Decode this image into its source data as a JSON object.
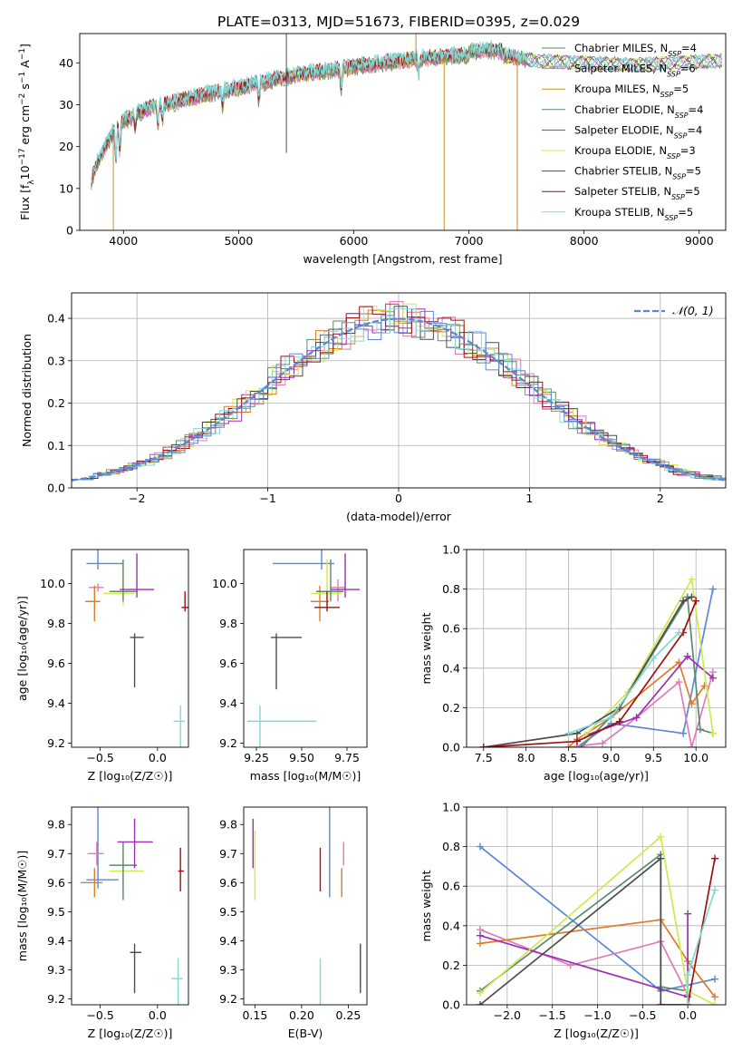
{
  "title": "PLATE=0313, MJD=51673, FIBERID=0395, z=0.029",
  "colors": {
    "c1": "#5b8a6b",
    "c2": "#e07ab8",
    "c3": "#e07b28",
    "c4": "#5b8a6b",
    "c5": "#9b2fb5",
    "c6": "#cfea4c",
    "c7": "#4d4d4d",
    "c8": "#a01010",
    "c9": "#7fd9d9",
    "blue": "#5b88d6"
  },
  "chart_data": [
    {
      "id": "spectrum",
      "type": "line",
      "xlabel": "wavelength [Angstrom, rest frame]",
      "ylabel": "Flux [f$_\\lambda$10$^{-17}$ erg cm$^{-2}$ s$^{-1}$ A$^{-1}$]",
      "ylabel_parts": [
        "Flux [f",
        "λ",
        "10",
        "−17",
        " erg cm",
        "−2",
        " s",
        "−1",
        " A",
        "−1",
        "]"
      ],
      "xlim": [
        3620,
        9230
      ],
      "ylim": [
        0,
        47
      ],
      "xticks": [
        4000,
        5000,
        6000,
        7000,
        8000,
        9000
      ],
      "yticks": [
        0,
        10,
        20,
        30,
        40
      ],
      "legend_position": "upper-right",
      "continuum": [
        [
          3720,
          12
        ],
        [
          3800,
          18
        ],
        [
          3900,
          23
        ],
        [
          4000,
          26
        ],
        [
          4200,
          29
        ],
        [
          4500,
          31
        ],
        [
          4800,
          33
        ],
        [
          5000,
          34
        ],
        [
          5300,
          36
        ],
        [
          5600,
          37.5
        ],
        [
          6000,
          39
        ],
        [
          6400,
          40.5
        ],
        [
          6800,
          41.5
        ],
        [
          7200,
          42
        ],
        [
          7600,
          40.5
        ],
        [
          8000,
          40
        ],
        [
          8400,
          39.5
        ],
        [
          8800,
          40
        ],
        [
          9200,
          40.5
        ]
      ],
      "series": [
        {
          "name": "Chabrier MILES, N",
          "sub": "SSP",
          "suffix": "=4",
          "color": "#5b8a6b"
        },
        {
          "name": "Salpeter MILES, N",
          "sub": "SSP",
          "suffix": "=6",
          "color": "#e07ab8"
        },
        {
          "name": "Kroupa MILES, N",
          "sub": "SSP",
          "suffix": "=5",
          "color": "#c4951f"
        },
        {
          "name": "Chabrier ELODIE, N",
          "sub": "SSP",
          "suffix": "=4",
          "color": "#5b8a6b"
        },
        {
          "name": "Salpeter ELODIE, N",
          "sub": "SSP",
          "suffix": "=4",
          "color": "#9b2fb5"
        },
        {
          "name": "Kroupa ELODIE, N",
          "sub": "SSP",
          "suffix": "=3",
          "color": "#cfea4c"
        },
        {
          "name": "Chabrier STELIB, N",
          "sub": "SSP",
          "suffix": "=5",
          "color": "#4d4d4d"
        },
        {
          "name": "Salpeter STELIB, N",
          "sub": "SSP",
          "suffix": "=5",
          "color": "#a01010"
        },
        {
          "name": "Kroupa STELIB, N",
          "sub": "SSP",
          "suffix": "=5",
          "color": "#7fd9d9"
        }
      ]
    },
    {
      "id": "residuals",
      "type": "bar",
      "xlabel": "(data-model)/error",
      "ylabel": "Normed distribution",
      "xlim": [
        -2.5,
        2.5
      ],
      "ylim": [
        0,
        0.46
      ],
      "xticks": [
        -2,
        -1,
        0,
        1,
        2
      ],
      "yticks": [
        0.0,
        0.1,
        0.2,
        0.3,
        0.4
      ],
      "grid": true,
      "legend_position": "upper-right",
      "legend_label": "𝒩(0, 1)",
      "bin_width": 0.1,
      "hist_colors": [
        "#5b8a6b",
        "#e07ab8",
        "#e07b28",
        "#9b2fb5",
        "#cfea4c",
        "#4d4d4d",
        "#a01010",
        "#7fd9d9",
        "#5b88d6"
      ]
    },
    {
      "id": "age-vs-Z",
      "type": "scatter",
      "xlabel": "Z [log₁₀(Z/Z☉)]",
      "ylabel": "age  [log₁₀(age/yr)]",
      "xlim": [
        -0.75,
        0.27
      ],
      "ylim": [
        9.18,
        10.17
      ],
      "xticks": [
        -0.5,
        0.0
      ],
      "yticks": [
        9.2,
        9.4,
        9.6,
        9.8,
        10.0
      ],
      "points": [
        {
          "x": -0.52,
          "y": 10.1,
          "xerr": [
            0.1,
            0.22
          ],
          "yerr": [
            0.57,
            0.03
          ],
          "color": "#5b88d6"
        },
        {
          "x": -0.52,
          "y": 9.98,
          "xerr": [
            0.08,
            0.05
          ],
          "yerr": [
            0.02,
            0.02
          ],
          "color": "#e07ab8"
        },
        {
          "x": -0.55,
          "y": 9.91,
          "xerr": [
            0.08,
            0.05
          ],
          "yerr": [
            0.08,
            0.1
          ],
          "color": "#e07b28"
        },
        {
          "x": -0.3,
          "y": 9.95,
          "xerr": [
            0.17,
            0.1
          ],
          "yerr": [
            0.17,
            0.06
          ],
          "color": "#cfea4c"
        },
        {
          "x": -0.3,
          "y": 9.96,
          "xerr": [
            0.12,
            0.12
          ],
          "yerr": [
            0.16,
            0.05
          ],
          "color": "#5b8a6b"
        },
        {
          "x": -0.18,
          "y": 9.97,
          "xerr": [
            0.15,
            0.15
          ],
          "yerr": [
            0.18,
            0.04
          ],
          "color": "#9b2fb5"
        },
        {
          "x": -0.2,
          "y": 9.73,
          "xerr": [
            0.04,
            0.08
          ],
          "yerr": [
            0.02,
            0.25
          ],
          "color": "#4d4d4d"
        },
        {
          "x": 0.24,
          "y": 9.88,
          "xerr": [
            0.03,
            0.03
          ],
          "yerr": [
            0.08,
            0.02
          ],
          "color": "#a01010"
        },
        {
          "x": 0.2,
          "y": 9.31,
          "xerr": [
            0.06,
            0.04
          ],
          "yerr": [
            0.08,
            0.66
          ],
          "color": "#7fd9d9"
        }
      ]
    },
    {
      "id": "age-vs-mass",
      "type": "scatter",
      "xlabel": "mass [log₁₀(M/M☉)]",
      "ylabel": "",
      "xlim": [
        9.18,
        9.86
      ],
      "ylim": [
        9.18,
        10.17
      ],
      "xticks": [
        9.25,
        9.5,
        9.75
      ],
      "yticks": [
        9.2,
        9.4,
        9.6,
        9.8,
        10.0
      ],
      "points": [
        {
          "x": 9.61,
          "y": 10.1,
          "xerr": [
            0.27,
            0.07
          ],
          "yerr": [
            0.57,
            0.03
          ],
          "color": "#5b88d6"
        },
        {
          "x": 9.7,
          "y": 9.98,
          "xerr": [
            0.04,
            0.04
          ],
          "yerr": [
            0.04,
            0.07
          ],
          "color": "#e07ab8"
        },
        {
          "x": 9.6,
          "y": 9.91,
          "xerr": [
            0.05,
            0.05
          ],
          "yerr": [
            0.08,
            0.1
          ],
          "color": "#e07b28"
        },
        {
          "x": 9.64,
          "y": 9.95,
          "xerr": [
            0.09,
            0.08
          ],
          "yerr": [
            0.17,
            0.06
          ],
          "color": "#cfea4c"
        },
        {
          "x": 9.66,
          "y": 9.96,
          "xerr": [
            0.08,
            0.07
          ],
          "yerr": [
            0.16,
            0.05
          ],
          "color": "#5b8a6b"
        },
        {
          "x": 9.74,
          "y": 9.97,
          "xerr": [
            0.08,
            0.08
          ],
          "yerr": [
            0.18,
            0.04
          ],
          "color": "#9b2fb5"
        },
        {
          "x": 9.36,
          "y": 9.73,
          "xerr": [
            0.03,
            0.14
          ],
          "yerr": [
            0.02,
            0.26
          ],
          "color": "#4d4d4d"
        },
        {
          "x": 9.64,
          "y": 9.88,
          "xerr": [
            0.07,
            0.07
          ],
          "yerr": [
            0.08,
            0.02
          ],
          "color": "#a01010"
        },
        {
          "x": 9.27,
          "y": 9.31,
          "xerr": [
            0.07,
            0.31
          ],
          "yerr": [
            0.08,
            0.66
          ],
          "color": "#7fd9d9"
        }
      ]
    },
    {
      "id": "weight-vs-age",
      "type": "line",
      "xlabel": "age  [log₁₀(age/yr)]",
      "ylabel": "mass weight",
      "xlim": [
        7.3,
        10.35
      ],
      "ylim": [
        0,
        1.0
      ],
      "xticks": [
        7.5,
        8.0,
        8.5,
        9.0,
        9.5,
        10.0
      ],
      "yticks": [
        0.0,
        0.2,
        0.4,
        0.6,
        0.8,
        1.0
      ],
      "grid": true,
      "series": [
        {
          "color": "#5b88d6",
          "x": [
            8.6,
            9.0,
            9.85,
            10.2
          ],
          "y": [
            0.0,
            0.12,
            0.07,
            0.8
          ]
        },
        {
          "color": "#e07ab8",
          "x": [
            8.5,
            8.9,
            9.3,
            9.8,
            9.95,
            10.2
          ],
          "y": [
            0.0,
            0.02,
            0.15,
            0.33,
            0.0,
            0.38
          ]
        },
        {
          "color": "#e07b28",
          "x": [
            8.5,
            8.6,
            9.0,
            9.8,
            9.95,
            10.1
          ],
          "y": [
            0.0,
            0.04,
            0.15,
            0.43,
            0.22,
            0.31
          ]
        },
        {
          "color": "#5b8a6b",
          "x": [
            8.65,
            9.1,
            9.9,
            10.05,
            10.2
          ],
          "y": [
            0.0,
            0.2,
            0.76,
            0.09,
            0.07
          ]
        },
        {
          "color": "#9b2fb5",
          "x": [
            8.7,
            9.3,
            9.9,
            10.2
          ],
          "y": [
            0.06,
            0.15,
            0.46,
            0.35
          ]
        },
        {
          "color": "#cfea4c",
          "x": [
            8.7,
            9.2,
            9.95,
            10.2
          ],
          "y": [
            0.06,
            0.28,
            0.85,
            0.07
          ]
        },
        {
          "color": "#4d4d4d",
          "x": [
            7.5,
            8.6,
            9.1,
            9.85,
            9.95
          ],
          "y": [
            0.0,
            0.07,
            0.2,
            0.74,
            0.76
          ]
        },
        {
          "color": "#a01010",
          "x": [
            7.5,
            8.6,
            9.1,
            9.85,
            10.0
          ],
          "y": [
            0.0,
            0.03,
            0.13,
            0.58,
            0.74
          ]
        },
        {
          "color": "#7fd9d9",
          "x": [
            8.5,
            9.0,
            9.5,
            9.8
          ],
          "y": [
            0.07,
            0.15,
            0.45,
            0.58
          ]
        }
      ]
    },
    {
      "id": "mass-vs-Z",
      "type": "scatter",
      "xlabel": "Z [log₁₀(Z/Z☉)]",
      "ylabel": "mass [log₁₀(M/M☉)]",
      "xlim": [
        -0.75,
        0.27
      ],
      "ylim": [
        9.18,
        9.86
      ],
      "xticks": [
        -0.5,
        0.0
      ],
      "yticks": [
        9.2,
        9.3,
        9.4,
        9.5,
        9.6,
        9.7,
        9.8
      ],
      "points": [
        {
          "x": -0.52,
          "y": 9.61,
          "xerr": [
            0.1,
            0.18
          ],
          "yerr": [
            0.29,
            0.03
          ],
          "color": "#5b88d6"
        },
        {
          "x": -0.53,
          "y": 9.7,
          "xerr": [
            0.08,
            0.06
          ],
          "yerr": [
            0.04,
            0.04
          ],
          "color": "#e07ab8"
        },
        {
          "x": -0.55,
          "y": 9.6,
          "xerr": [
            0.12,
            0.07
          ],
          "yerr": [
            0.05,
            0.05
          ],
          "color": "#e07b28"
        },
        {
          "x": -0.3,
          "y": 9.64,
          "xerr": [
            0.12,
            0.18
          ],
          "yerr": [
            0.09,
            0.08
          ],
          "color": "#cfea4c"
        },
        {
          "x": -0.3,
          "y": 9.66,
          "xerr": [
            0.12,
            0.12
          ],
          "yerr": [
            0.08,
            0.12
          ],
          "color": "#5b8a6b"
        },
        {
          "x": -0.2,
          "y": 9.74,
          "xerr": [
            0.15,
            0.16
          ],
          "yerr": [
            0.08,
            0.09
          ],
          "color": "#9b2fb5"
        },
        {
          "x": -0.2,
          "y": 9.36,
          "xerr": [
            0.04,
            0.06
          ],
          "yerr": [
            0.03,
            0.14
          ],
          "color": "#4d4d4d"
        },
        {
          "x": 0.2,
          "y": 9.64,
          "xerr": [
            0.02,
            0.03
          ],
          "yerr": [
            0.08,
            0.07
          ],
          "color": "#a01010"
        },
        {
          "x": 0.18,
          "y": 9.27,
          "xerr": [
            0.06,
            0.04
          ],
          "yerr": [
            0.07,
            0.42
          ],
          "color": "#7fd9d9"
        }
      ]
    },
    {
      "id": "mass-vs-EBV",
      "type": "scatter",
      "xlabel": "E(B-V)",
      "ylabel": "",
      "xlim": [
        0.138,
        0.27
      ],
      "ylim": [
        9.18,
        9.86
      ],
      "xticks": [
        0.15,
        0.2,
        0.25
      ],
      "yticks": [
        9.2,
        9.3,
        9.4,
        9.5,
        9.6,
        9.7,
        9.8
      ],
      "points": [
        {
          "x": 0.148,
          "y": 9.74,
          "xerr": [
            0,
            0
          ],
          "yerr": [
            0.08,
            0.09
          ],
          "color": "#9b2fb5"
        },
        {
          "x": 0.15,
          "y": 9.66,
          "xerr": [
            0,
            0
          ],
          "yerr": [
            0.12,
            0.12
          ],
          "color": "#cfea4c"
        },
        {
          "x": 0.22,
          "y": 9.64,
          "xerr": [
            0,
            0
          ],
          "yerr": [
            0.08,
            0.07
          ],
          "color": "#a01010"
        },
        {
          "x": 0.22,
          "y": 9.27,
          "xerr": [
            0,
            0
          ],
          "yerr": [
            0.07,
            0.42
          ],
          "color": "#7fd9d9"
        },
        {
          "x": 0.23,
          "y": 9.61,
          "xerr": [
            0,
            0
          ],
          "yerr": [
            0.29,
            0.06
          ],
          "color": "#5b88d6"
        },
        {
          "x": 0.243,
          "y": 9.6,
          "xerr": [
            0,
            0
          ],
          "yerr": [
            0.05,
            0.05
          ],
          "color": "#e07b28"
        },
        {
          "x": 0.245,
          "y": 9.7,
          "xerr": [
            0,
            0
          ],
          "yerr": [
            0.04,
            0.04
          ],
          "color": "#e07ab8"
        },
        {
          "x": 0.263,
          "y": 9.36,
          "xerr": [
            0,
            0
          ],
          "yerr": [
            0.03,
            0.14
          ],
          "color": "#4d4d4d"
        }
      ]
    },
    {
      "id": "weight-vs-Z",
      "type": "line",
      "xlabel": "Z [log₁₀(Z/Z☉)]",
      "ylabel": "mass weight",
      "xlim": [
        -2.45,
        0.42
      ],
      "ylim": [
        0,
        1.0
      ],
      "xticks": [
        -2.0,
        -1.5,
        -1.0,
        -0.5,
        0.0
      ],
      "yticks": [
        0.0,
        0.2,
        0.4,
        0.6,
        0.8,
        1.0
      ],
      "grid": true,
      "series": [
        {
          "color": "#5b88d6",
          "x": [
            -2.3,
            -0.3,
            0.0,
            0.3
          ],
          "y": [
            0.8,
            0.07,
            0.1,
            0.13
          ]
        },
        {
          "color": "#e07ab8",
          "x": [
            -2.3,
            -1.3,
            -0.3,
            0.0,
            0.0
          ],
          "y": [
            0.38,
            0.2,
            0.32,
            0.05,
            0.0
          ]
        },
        {
          "color": "#e07b28",
          "x": [
            -2.3,
            -0.3,
            0.0,
            0.3
          ],
          "y": [
            0.31,
            0.43,
            0.22,
            0.04
          ]
        },
        {
          "color": "#5b8a6b",
          "x": [
            -2.3,
            -0.3,
            -0.3,
            0.0,
            0.0
          ],
          "y": [
            0.07,
            0.76,
            0.09,
            0.07,
            0.0
          ]
        },
        {
          "color": "#9b2fb5",
          "x": [
            -2.3,
            0.0,
            0.0
          ],
          "y": [
            0.35,
            0.04,
            0.46
          ]
        },
        {
          "color": "#cfea4c",
          "x": [
            -2.3,
            -0.3,
            0.0,
            0.3
          ],
          "y": [
            0.06,
            0.85,
            0.07,
            0.0
          ]
        },
        {
          "color": "#4d4d4d",
          "x": [
            -2.3,
            -0.3,
            -0.3
          ],
          "y": [
            0.0,
            0.74,
            0.0
          ]
        },
        {
          "color": "#a01010",
          "x": [
            -0.3,
            0.0,
            0.3
          ],
          "y": [
            0.0,
            0.0,
            0.74
          ]
        },
        {
          "color": "#7fd9d9",
          "x": [
            0.0,
            0.0,
            0.3
          ],
          "y": [
            0.0,
            0.15,
            0.58
          ]
        }
      ]
    }
  ]
}
